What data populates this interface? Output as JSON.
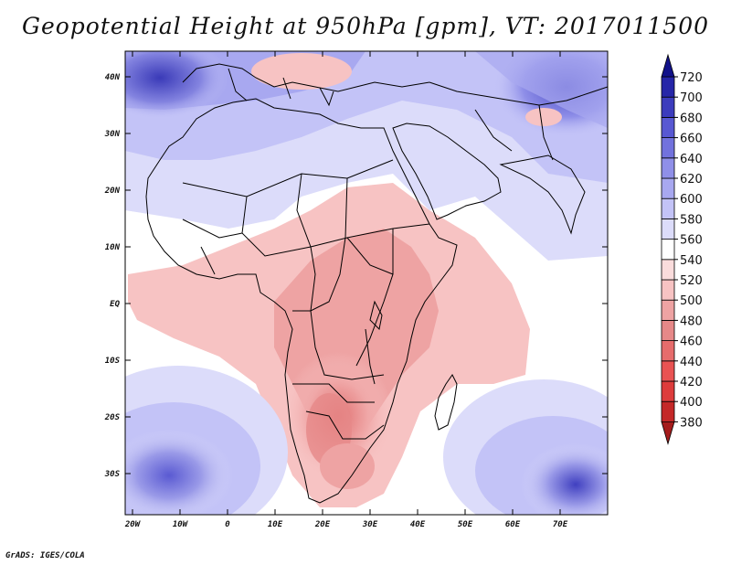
{
  "title": "Geopotential Height at 950hPa [gpm], VT: 2017011500",
  "credit": "GrADS: IGES/COLA",
  "map": {
    "lat_ticks": [
      "40N",
      "30N",
      "20N",
      "10N",
      "EQ",
      "10S",
      "20S",
      "30S"
    ],
    "lon_ticks": [
      "20W",
      "10W",
      "0",
      "10E",
      "20E",
      "30E",
      "40E",
      "50E",
      "60E",
      "70E"
    ],
    "colorbar": {
      "levels": [
        "380",
        "400",
        "420",
        "440",
        "460",
        "480",
        "500",
        "520",
        "540",
        "560",
        "580",
        "600",
        "620",
        "640",
        "660",
        "680",
        "700",
        "720"
      ],
      "colors": [
        "#a51c1c",
        "#c42828",
        "#dd3c3c",
        "#e95353",
        "#e66c6c",
        "#e68888",
        "#eea3a3",
        "#f7c3c3",
        "#fadcdc",
        "#ffffff",
        "#dcdcfa",
        "#c3c3f7",
        "#a8a8f0",
        "#8f8fe8",
        "#7272dd",
        "#5858d2",
        "#3c3cbd",
        "#2626a8",
        "#12128a"
      ]
    }
  }
}
